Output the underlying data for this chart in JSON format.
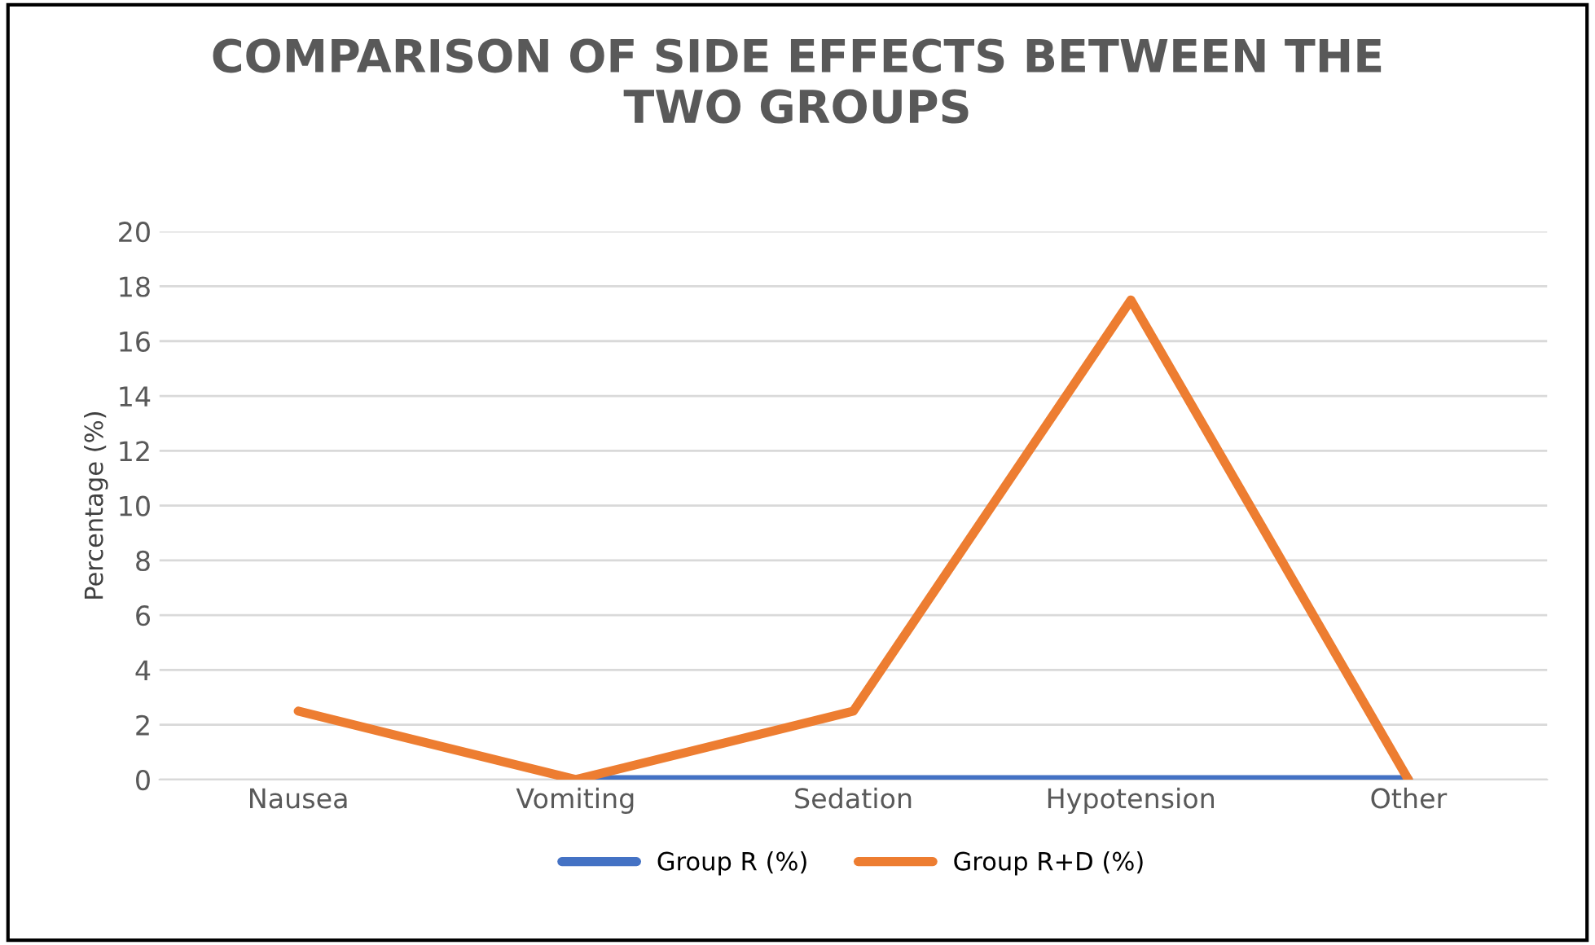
{
  "chart_data": {
    "type": "line",
    "title": "COMPARISON OF SIDE EFFECTS BETWEEN THE\nTWO GROUPS",
    "ylabel": "Percentage (%)",
    "categories": [
      "Nausea",
      "Vomiting",
      "Sedation",
      "Hypotension",
      "Other"
    ],
    "series": [
      {
        "name": "Group R (%)",
        "color": "#4472c4",
        "values": [
          null,
          0,
          0,
          0,
          0
        ]
      },
      {
        "name": "Group R+D (%)",
        "color": "#ed7d31",
        "values": [
          2.5,
          0,
          2.5,
          17.5,
          0
        ]
      }
    ],
    "ylim": [
      0,
      20
    ],
    "yticks": [
      0,
      2,
      4,
      6,
      8,
      10,
      12,
      14,
      16,
      18,
      20
    ],
    "grid": "y",
    "legend": "bottom",
    "marker": "none",
    "line_style": "solid"
  }
}
